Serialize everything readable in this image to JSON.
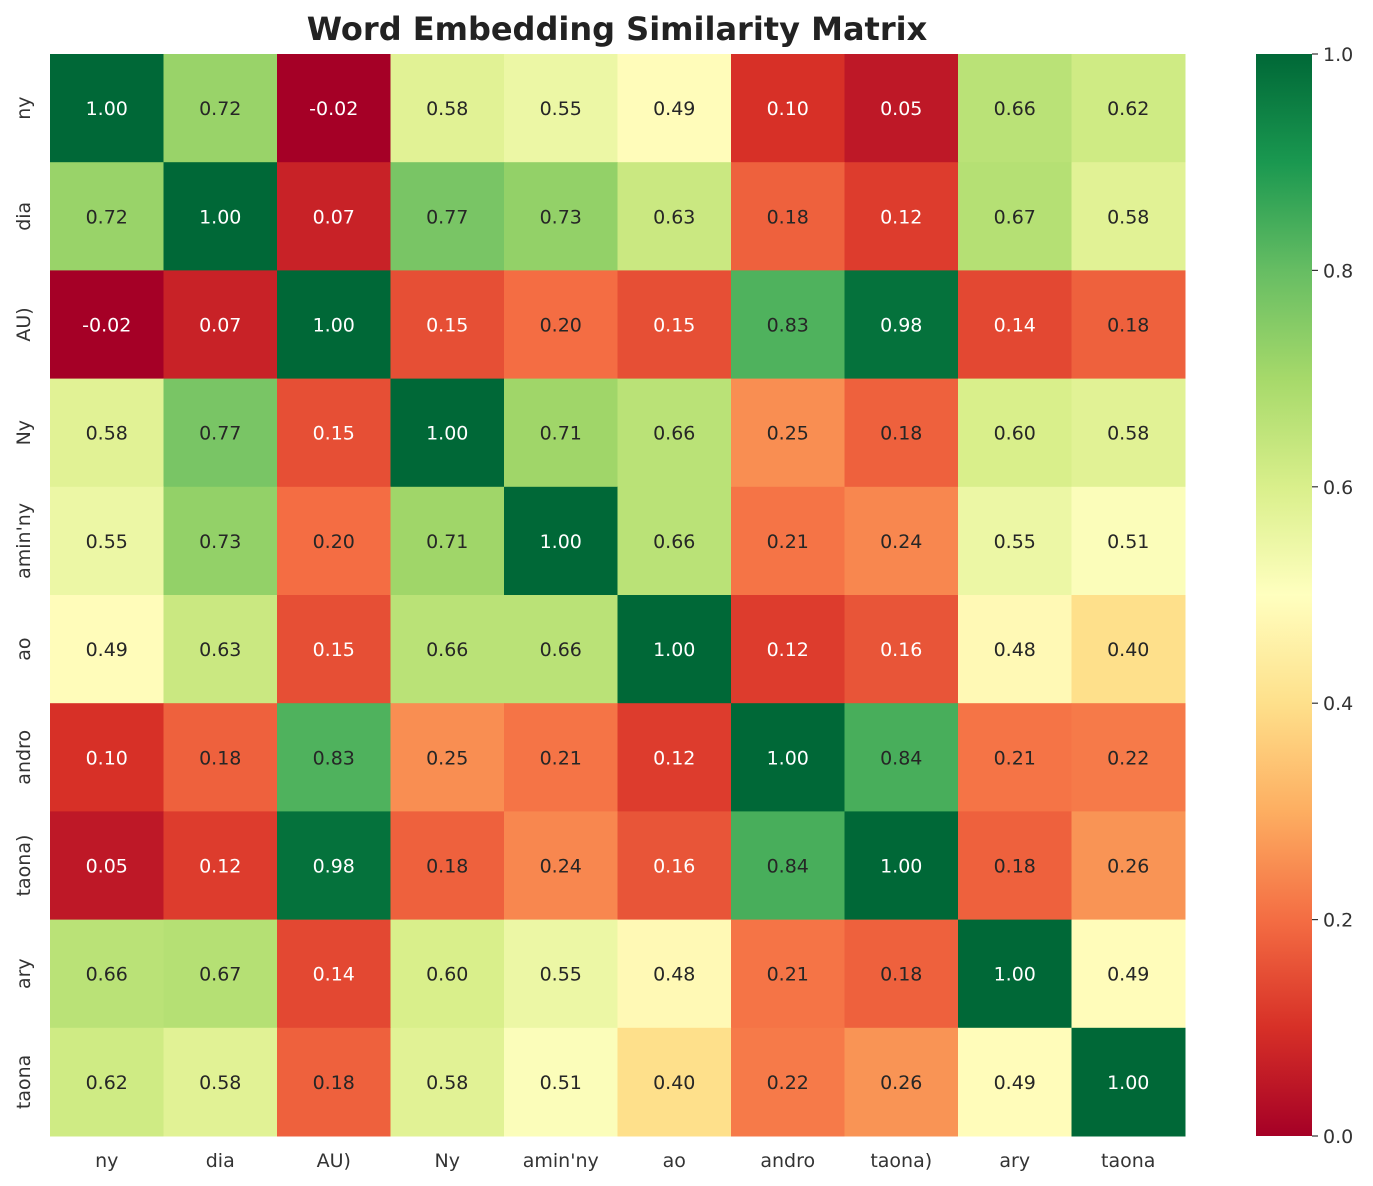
{
  "chart_data": {
    "type": "heatmap",
    "title": "Word Embedding Similarity Matrix",
    "xlabel": "",
    "ylabel": "",
    "row_labels": [
      "ny",
      "dia",
      "AU)",
      "Ny",
      "amin'ny",
      "ao",
      "andro",
      "taona)",
      "ary",
      "taona"
    ],
    "col_labels": [
      "ny",
      "dia",
      "AU)",
      "Ny",
      "amin'ny",
      "ao",
      "andro",
      "taona)",
      "ary",
      "taona"
    ],
    "values": [
      [
        1.0,
        0.72,
        -0.02,
        0.58,
        0.55,
        0.49,
        0.1,
        0.05,
        0.66,
        0.62
      ],
      [
        0.72,
        1.0,
        0.07,
        0.77,
        0.73,
        0.63,
        0.18,
        0.12,
        0.67,
        0.58
      ],
      [
        -0.02,
        0.07,
        1.0,
        0.15,
        0.2,
        0.15,
        0.83,
        0.98,
        0.14,
        0.18
      ],
      [
        0.58,
        0.77,
        0.15,
        1.0,
        0.71,
        0.66,
        0.25,
        0.18,
        0.6,
        0.58
      ],
      [
        0.55,
        0.73,
        0.2,
        0.71,
        1.0,
        0.66,
        0.21,
        0.24,
        0.55,
        0.51
      ],
      [
        0.49,
        0.63,
        0.15,
        0.66,
        0.66,
        1.0,
        0.12,
        0.16,
        0.48,
        0.4
      ],
      [
        0.1,
        0.18,
        0.83,
        0.25,
        0.21,
        0.12,
        1.0,
        0.84,
        0.21,
        0.22
      ],
      [
        0.05,
        0.12,
        0.98,
        0.18,
        0.24,
        0.16,
        0.84,
        1.0,
        0.18,
        0.26
      ],
      [
        0.66,
        0.67,
        0.14,
        0.6,
        0.55,
        0.48,
        0.21,
        0.18,
        1.0,
        0.49
      ],
      [
        0.62,
        0.58,
        0.18,
        0.58,
        0.51,
        0.4,
        0.22,
        0.26,
        0.49,
        1.0
      ]
    ],
    "value_format": "2 decimals",
    "colormap": "RdYlGn",
    "vmin": 0.0,
    "vmax": 1.0,
    "colorbar_ticks": [
      "0.0",
      "0.2",
      "0.4",
      "0.6",
      "0.8",
      "1.0"
    ],
    "grid": false,
    "legend": "colorbar-right"
  }
}
